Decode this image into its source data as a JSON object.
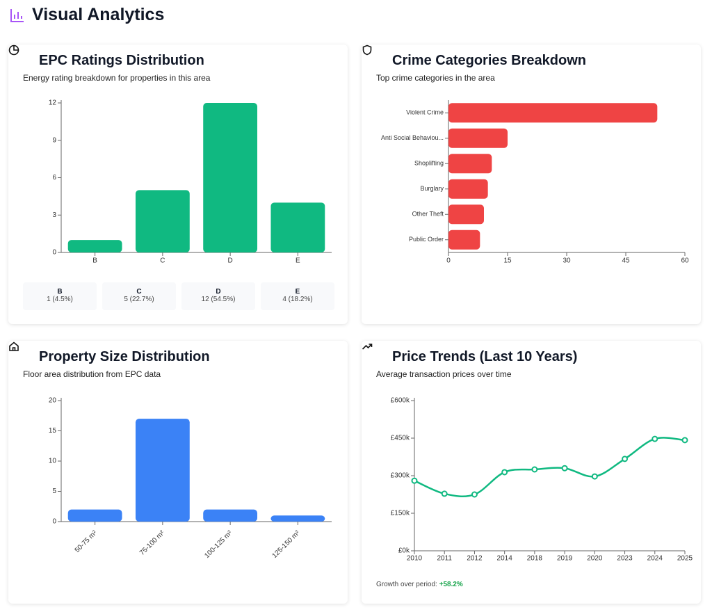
{
  "header": {
    "title": "Visual Analytics"
  },
  "chart_data": [
    {
      "type": "bar",
      "title": "EPC Ratings Distribution",
      "subtitle": "Energy rating breakdown for properties in this area",
      "categories": [
        "B",
        "C",
        "D",
        "E"
      ],
      "values": [
        1,
        5,
        12,
        4
      ],
      "color": "#10b981",
      "ylim": [
        0,
        12
      ],
      "yticks": [
        0,
        3,
        6,
        9,
        12
      ],
      "summary": [
        {
          "label": "B",
          "text": "1 (4.5%)"
        },
        {
          "label": "C",
          "text": "5 (22.7%)"
        },
        {
          "label": "D",
          "text": "12 (54.5%)"
        },
        {
          "label": "E",
          "text": "4 (18.2%)"
        }
      ]
    },
    {
      "type": "bar",
      "orientation": "horizontal",
      "title": "Crime Categories Breakdown",
      "subtitle": "Top crime categories in the area",
      "categories": [
        "Violent Crime",
        "Anti Social Behaviou...",
        "Shoplifting",
        "Burglary",
        "Other Theft",
        "Public Order"
      ],
      "values": [
        53,
        15,
        11,
        10,
        9,
        8
      ],
      "color": "#ef4444",
      "xlim": [
        0,
        60
      ],
      "xticks": [
        0,
        15,
        30,
        45,
        60
      ]
    },
    {
      "type": "bar",
      "title": "Property Size Distribution",
      "subtitle": "Floor area distribution from EPC data",
      "categories": [
        "50-75 m²",
        "75-100 m²",
        "100-125 m²",
        "125-150 m²"
      ],
      "values": [
        2,
        17,
        2,
        1
      ],
      "color": "#3b82f6",
      "ylim": [
        0,
        20
      ],
      "yticks": [
        0,
        5,
        10,
        15,
        20
      ]
    },
    {
      "type": "line",
      "title": "Price Trends (Last 10 Years)",
      "subtitle": "Average transaction prices over time",
      "categories": [
        "2010",
        "2011",
        "2012",
        "2014",
        "2018",
        "2019",
        "2020",
        "2023",
        "2024",
        "2025"
      ],
      "values": [
        280000,
        228000,
        225000,
        314000,
        325000,
        330000,
        297000,
        367000,
        447000,
        442000
      ],
      "color": "#10b981",
      "ylim": [
        0,
        600000
      ],
      "yticks": [
        {
          "value": 0,
          "label": "£0k"
        },
        {
          "value": 150000,
          "label": "£150k"
        },
        {
          "value": 300000,
          "label": "£300k"
        },
        {
          "value": 450000,
          "label": "£450k"
        },
        {
          "value": 600000,
          "label": "£600k"
        }
      ],
      "footer": {
        "label": "Growth over period:",
        "value": "+58.2%"
      }
    }
  ]
}
